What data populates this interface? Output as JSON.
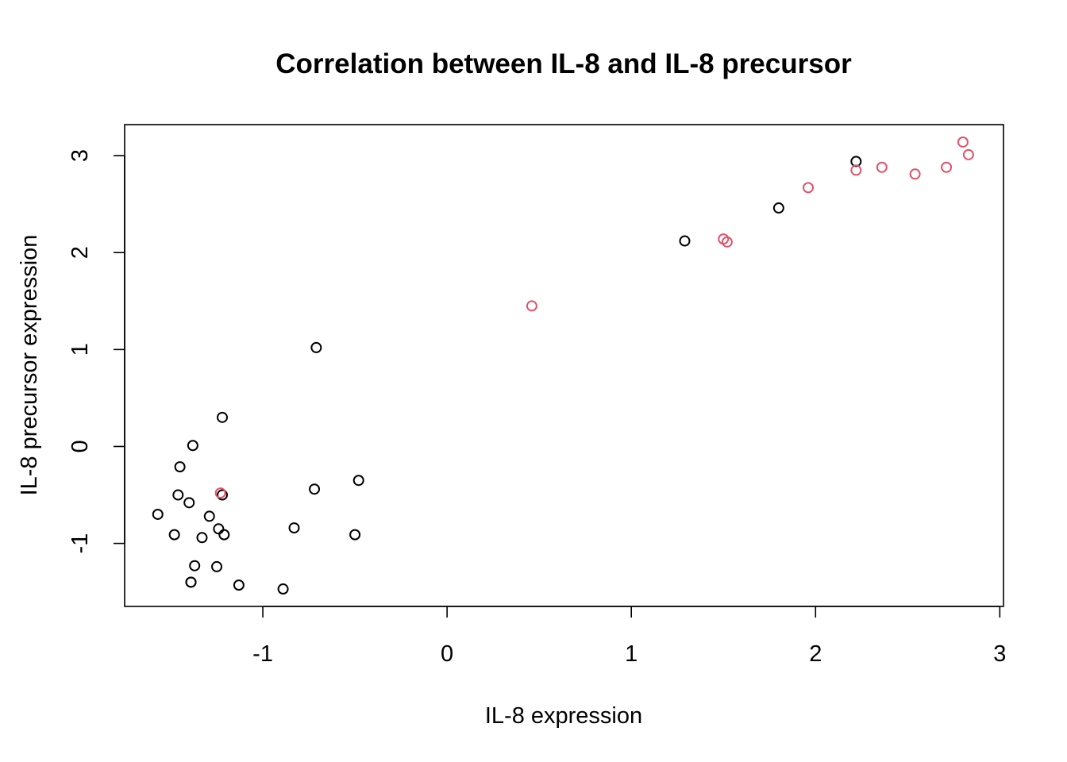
{
  "chart_data": {
    "type": "scatter",
    "title": "Correlation between IL-8 and IL-8 precursor",
    "xlabel": "IL-8 expression",
    "ylabel": "IL-8 precursor expression",
    "xlim": [
      -1.75,
      3.02
    ],
    "ylim": [
      -1.65,
      3.32
    ],
    "x_ticks": [
      -1,
      0,
      1,
      2,
      3
    ],
    "y_ticks": [
      -1,
      0,
      1,
      2,
      3
    ],
    "grid": false,
    "legend": "none",
    "marker": "open-circle",
    "colors": {
      "black": "#000000",
      "red": "#DF536B"
    },
    "series": [
      {
        "color": "#000000",
        "x": [
          -1.57,
          -1.48,
          -1.46,
          -1.45,
          -1.4,
          -1.39,
          -1.39,
          -1.38,
          -1.37,
          -1.33,
          -1.29,
          -1.25,
          -1.24,
          -1.22,
          -1.22,
          -1.21,
          -1.13,
          -0.89,
          -0.83,
          -0.72,
          -0.71,
          -0.5,
          -0.48,
          1.29,
          1.8,
          2.22
        ],
        "y": [
          -0.7,
          -0.91,
          -0.5,
          -0.21,
          -0.58,
          -1.4,
          -1.4,
          0.01,
          -1.23,
          -0.94,
          -0.72,
          -1.24,
          -0.85,
          -0.5,
          0.3,
          -0.91,
          -1.43,
          -1.47,
          -0.84,
          -0.44,
          1.02,
          -0.91,
          -0.35,
          2.12,
          2.46,
          2.94
        ]
      },
      {
        "color": "#DF536B",
        "x": [
          -1.23,
          0.46,
          1.5,
          1.52,
          1.96,
          2.22,
          2.36,
          2.54,
          2.71,
          2.8,
          2.83
        ],
        "y": [
          -0.48,
          1.45,
          2.14,
          2.11,
          2.67,
          2.85,
          2.88,
          2.81,
          2.88,
          3.14,
          3.01
        ]
      }
    ]
  }
}
